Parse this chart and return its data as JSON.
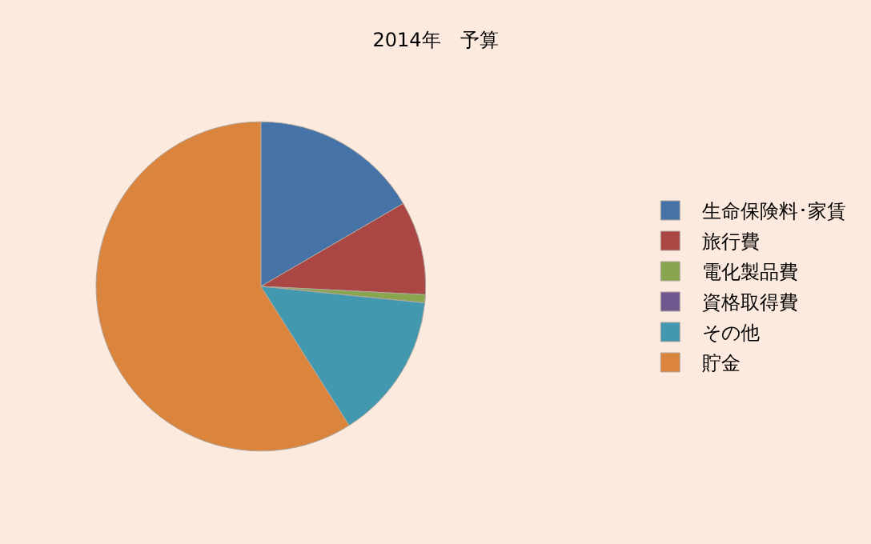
{
  "chart_data": {
    "type": "pie",
    "title": "2014年　予算",
    "categories": [
      "生命保険料･家賃",
      "旅行費",
      "電化製品費",
      "資格取得費",
      "その他",
      "貯金"
    ],
    "values": [
      16.6,
      9.2,
      0.8,
      0,
      14.4,
      59.0
    ],
    "colors": [
      "#4572a7",
      "#aa4643",
      "#89a54e",
      "#71588f",
      "#4198af",
      "#db843d"
    ],
    "legend": "right"
  }
}
